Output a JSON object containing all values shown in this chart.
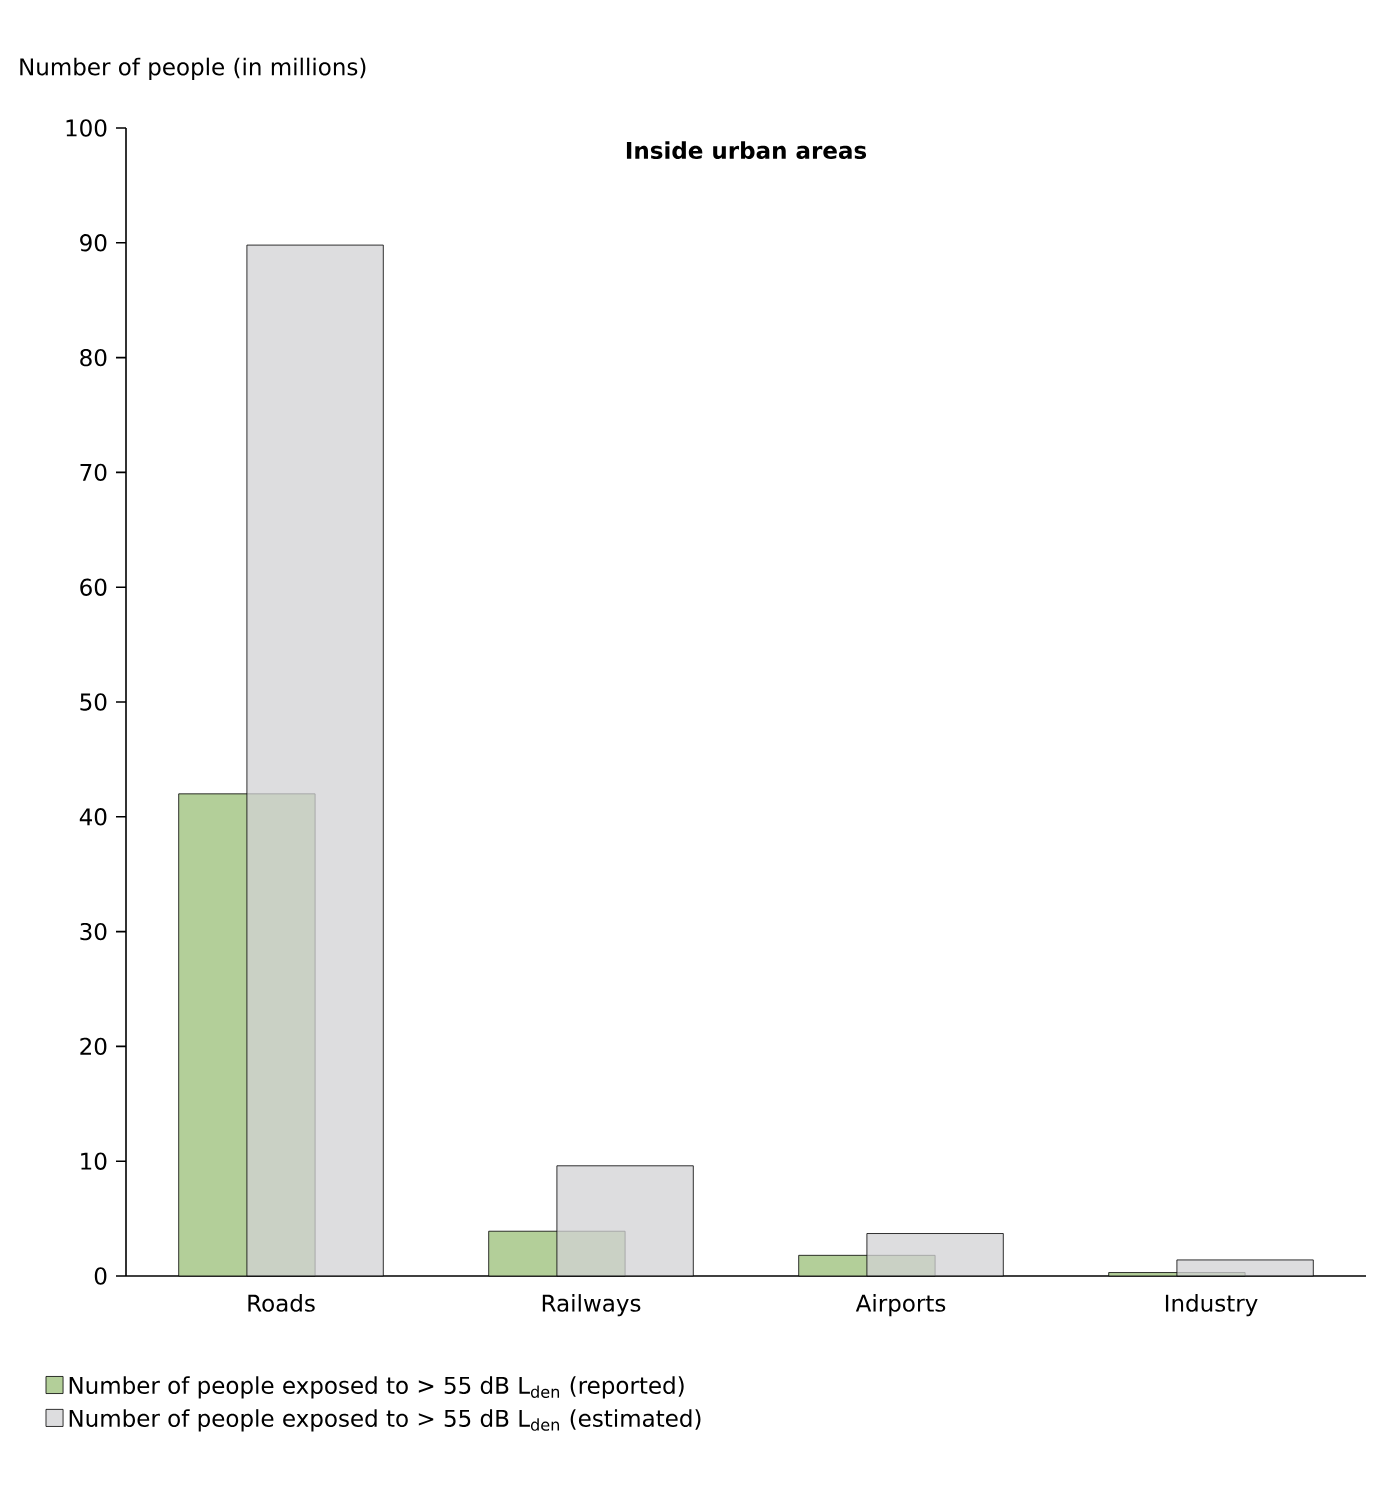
{
  "chart_data": {
    "type": "bar",
    "title": "Inside urban areas",
    "ylabel": "Number of people (in millions)",
    "categories": [
      "Roads",
      "Railways",
      "Airports",
      "Industry"
    ],
    "series": [
      {
        "name": "Number of people exposed to > 55 dB L$_{den}$ (reported)",
        "color": "#b3cf99",
        "values": [
          42,
          3.9,
          1.8,
          0.3
        ]
      },
      {
        "name": "Number of people exposed to  > 55 dB L$_{den}$ (estimated)",
        "color": "#d1d2d4",
        "values": [
          89.8,
          9.6,
          3.7,
          1.4
        ]
      }
    ],
    "ylim": [
      0,
      100
    ],
    "yticks": [
      0,
      10,
      20,
      30,
      40,
      50,
      60,
      70,
      80,
      90,
      100
    ],
    "legend": "bottom"
  }
}
